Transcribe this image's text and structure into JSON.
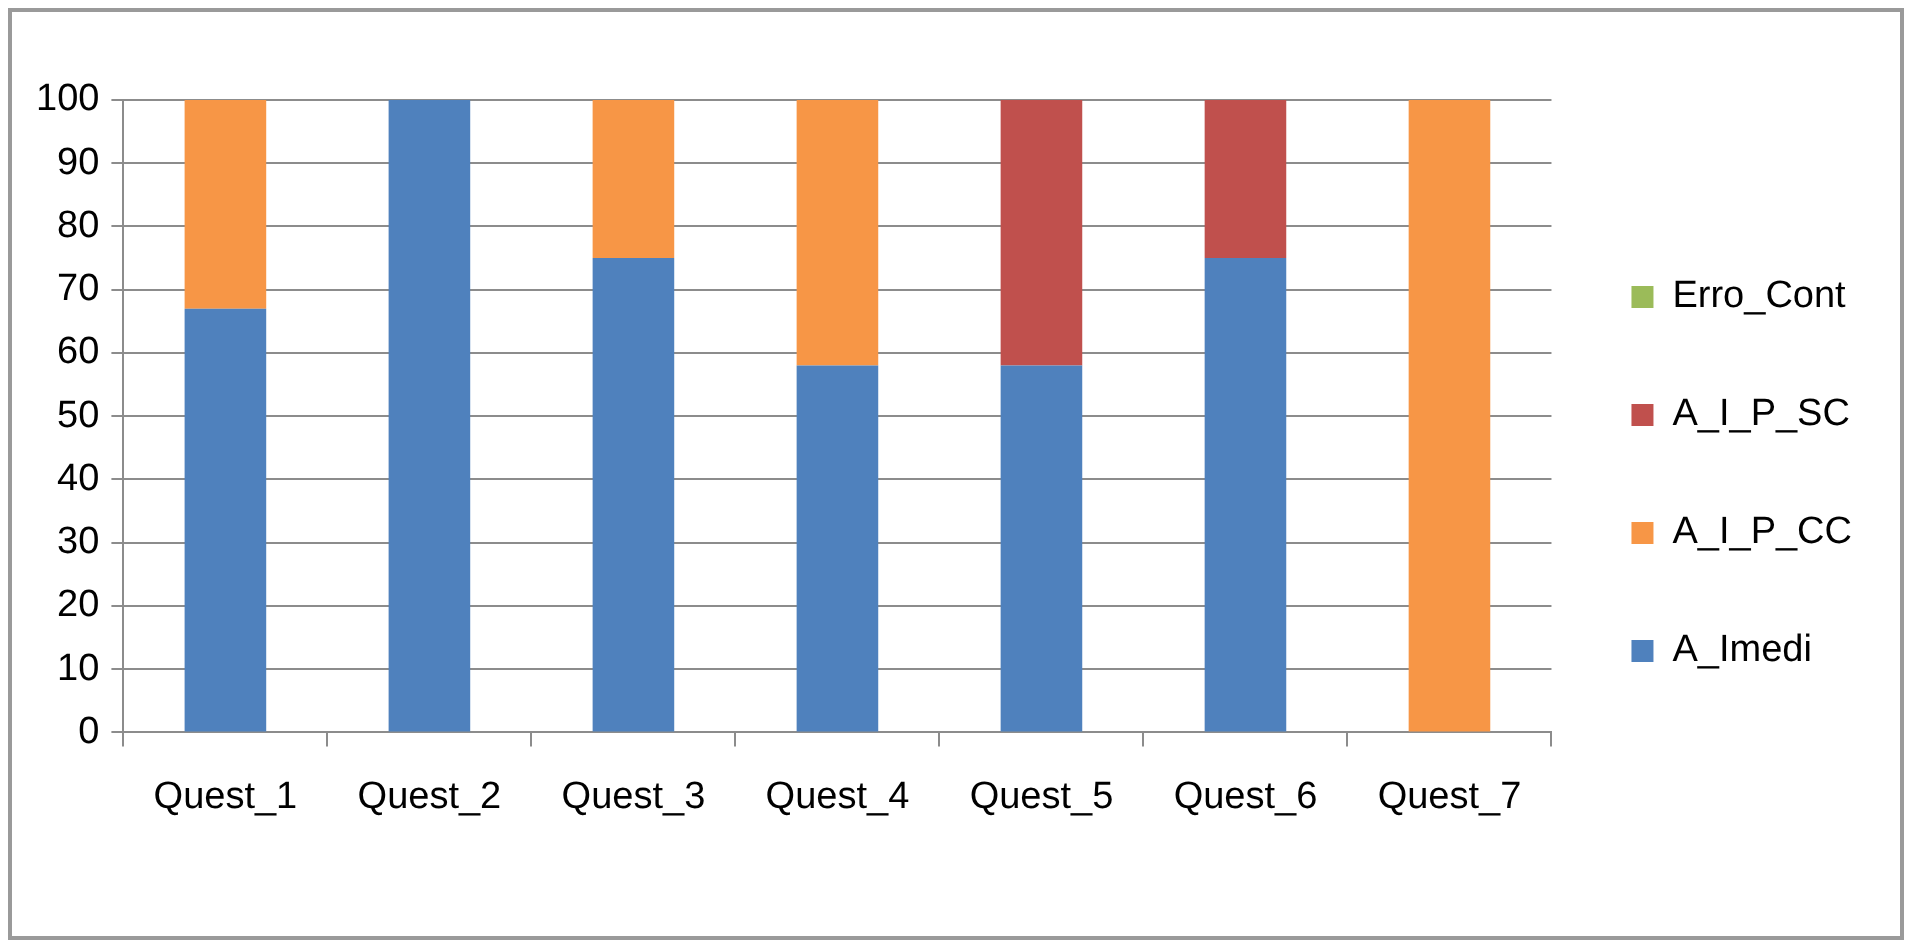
{
  "chart_data": {
    "type": "bar",
    "stacked": true,
    "categories": [
      "Quest_1",
      "Quest_2",
      "Quest_3",
      "Quest_4",
      "Quest_5",
      "Quest_6",
      "Quest_7"
    ],
    "series": [
      {
        "name": "A_Imedi",
        "color": "#4f81bd",
        "values": [
          67,
          100,
          75,
          58,
          58,
          75,
          0
        ]
      },
      {
        "name": "A_I_P_CC",
        "color": "#f79646",
        "values": [
          33,
          0,
          25,
          42,
          0,
          0,
          100
        ]
      },
      {
        "name": "A_I_P_SC",
        "color": "#c0504d",
        "values": [
          0,
          0,
          0,
          0,
          42,
          25,
          0
        ]
      },
      {
        "name": "Erro_Cont",
        "color": "#9bbb59",
        "values": [
          0,
          0,
          0,
          0,
          0,
          0,
          0
        ]
      }
    ],
    "ylim": [
      0,
      100
    ],
    "yticks": [
      0,
      10,
      20,
      30,
      40,
      50,
      60,
      70,
      80,
      90,
      100
    ],
    "grid": "y",
    "legend": "right"
  }
}
